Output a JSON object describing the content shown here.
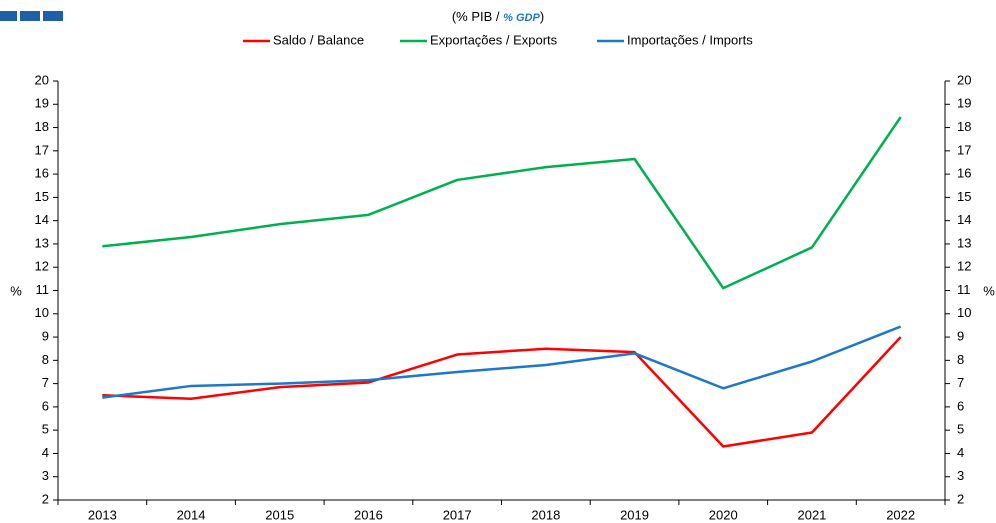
{
  "chart_data": {
    "type": "line",
    "subtitle_parts": [
      "(% PIB /",
      "% GDP",
      ")"
    ],
    "y_label": "%",
    "y2_label": "%",
    "categories": [
      "2013",
      "2014",
      "2015",
      "2016",
      "2017",
      "2018",
      "2019",
      "2020",
      "2021",
      "2022"
    ],
    "series": [
      {
        "name": "Saldo / Balance",
        "color": "#ff0000",
        "values": [
          6.5,
          6.35,
          6.85,
          7.05,
          8.25,
          8.5,
          8.35,
          4.3,
          4.9,
          9.0
        ]
      },
      {
        "name": "Exportações / Exports",
        "color": "#00b050",
        "values": [
          12.9,
          13.3,
          13.85,
          14.25,
          15.75,
          16.3,
          16.65,
          11.1,
          12.85,
          18.45
        ]
      },
      {
        "name": "Importações / Imports",
        "color": "#1f77c8",
        "values": [
          6.4,
          6.9,
          7.0,
          7.15,
          7.5,
          7.8,
          8.3,
          6.8,
          7.95,
          9.45
        ]
      }
    ],
    "ylim": [
      2,
      20
    ],
    "yticks": [
      2,
      3,
      4,
      5,
      6,
      7,
      8,
      9,
      10,
      11,
      12,
      13,
      14,
      15,
      16,
      17,
      18,
      19,
      20
    ],
    "y2lim": [
      2,
      20
    ],
    "y2ticks": [
      2,
      3,
      4,
      5,
      6,
      7,
      8,
      9,
      10,
      11,
      12,
      13,
      14,
      15,
      16,
      17,
      18,
      19,
      20
    ],
    "grid": false
  }
}
